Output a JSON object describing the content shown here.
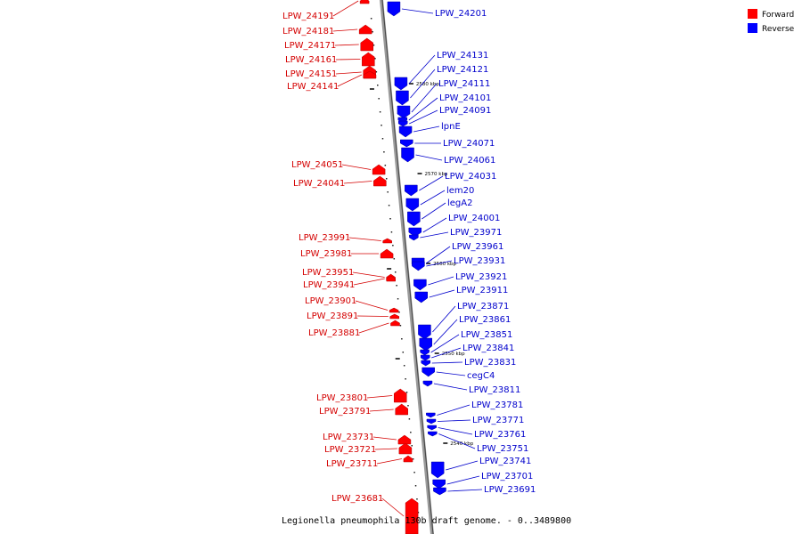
{
  "caption": "Legionella pneumophila 130b draft genome. - 0..3489800",
  "legend": [
    {
      "label": "Forward",
      "color": "#ff0000"
    },
    {
      "label": "Reverse",
      "color": "#0000ff"
    }
  ],
  "colors": {
    "forward": "#ff0000",
    "reverse": "#0000ff",
    "forward_label": "#d40000",
    "reverse_label": "#0000cc",
    "backbone": "#888888"
  },
  "ticks": [
    "2580 kbp",
    "2570 kbp",
    "2560 kbp",
    "2550 kbp",
    "2540 kbp"
  ],
  "forward_genes": [
    "LPW_24191",
    "LPW_24181",
    "LPW_24171",
    "LPW_24161",
    "LPW_24151",
    "LPW_24141",
    "LPW_24051",
    "LPW_24041",
    "LPW_23991",
    "LPW_23981",
    "LPW_23951",
    "LPW_23941",
    "LPW_23901",
    "LPW_23891",
    "LPW_23881",
    "LPW_23801",
    "LPW_23791",
    "LPW_23731",
    "LPW_23721",
    "LPW_23711",
    "LPW_23681"
  ],
  "reverse_genes": [
    "LPW_24201",
    "LPW_24131",
    "LPW_24121",
    "LPW_24111",
    "LPW_24101",
    "LPW_24091",
    "lpnE",
    "LPW_24071",
    "LPW_24061",
    "LPW_24031",
    "lem20",
    "legA2",
    "LPW_24001",
    "LPW_23971",
    "LPW_23961",
    "LPW_23931",
    "LPW_23921",
    "LPW_23911",
    "LPW_23871",
    "LPW_23861",
    "LPW_23851",
    "LPW_23841",
    "LPW_23831",
    "cegC4",
    "LPW_23811",
    "LPW_23781",
    "LPW_23771",
    "LPW_23761",
    "LPW_23751",
    "LPW_23741",
    "LPW_23701",
    "LPW_23691"
  ]
}
